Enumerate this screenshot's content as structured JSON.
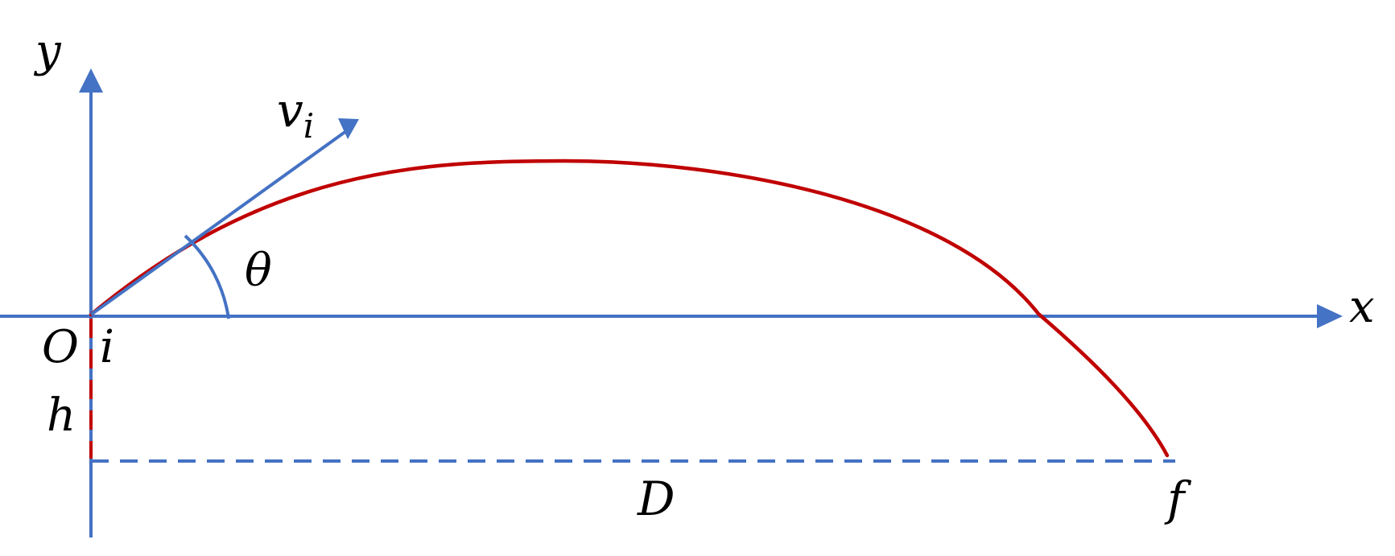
{
  "labels": {
    "y_axis": "y",
    "x_axis": "x",
    "origin": "O",
    "initial_point": "i",
    "height": "h",
    "angle": "θ",
    "velocity_base": "v",
    "velocity_subscript": "i",
    "distance": "D",
    "final_point": "f"
  },
  "colors": {
    "axes_and_vectors": "#4472C4",
    "trajectory": "#C00000",
    "text": "#000000"
  }
}
